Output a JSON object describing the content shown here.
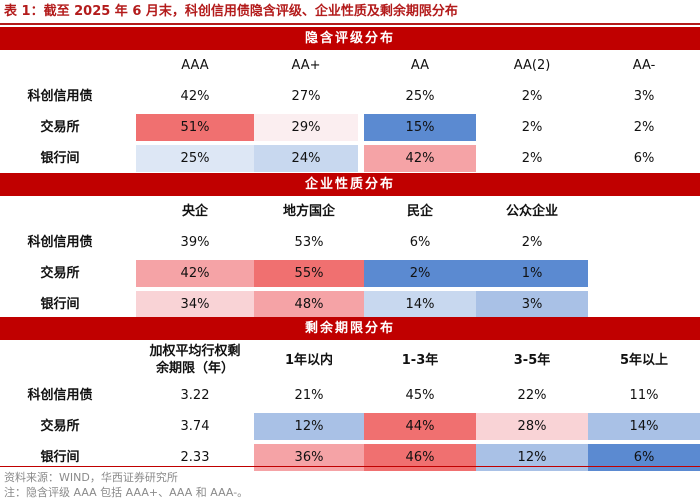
{
  "title": "表 1：截至 2025 年 6 月末，科创信用债隐含评级、企业性质及剩余期限分布",
  "section1": {
    "heading": "隐含评级分布",
    "columns": [
      "AAA",
      "AA+",
      "AA",
      "AA(2)",
      "AA-"
    ],
    "rows": [
      {
        "label": "科创信用债",
        "values": [
          "42%",
          "27%",
          "25%",
          "2%",
          "3%"
        ]
      },
      {
        "label": "交易所",
        "values": [
          "51%",
          "29%",
          "15%",
          "2%",
          "2%"
        ]
      },
      {
        "label": "银行间",
        "values": [
          "25%",
          "24%",
          "42%",
          "2%",
          "6%"
        ]
      }
    ]
  },
  "section2": {
    "heading": "企业性质分布",
    "columns": [
      "央企",
      "地方国企",
      "民企",
      "公众企业"
    ],
    "rows": [
      {
        "label": "科创信用债",
        "values": [
          "39%",
          "53%",
          "6%",
          "2%"
        ]
      },
      {
        "label": "交易所",
        "values": [
          "42%",
          "55%",
          "2%",
          "1%"
        ]
      },
      {
        "label": "银行间",
        "values": [
          "34%",
          "48%",
          "14%",
          "3%"
        ]
      }
    ]
  },
  "section3": {
    "heading": "剩余期限分布",
    "columns": [
      "加权平均行权剩余期限（年）",
      "1年以内",
      "1-3年",
      "3-5年",
      "5年以上"
    ],
    "header_line1": "加权平均行权剩",
    "header_line2": "余期限（年）",
    "rows": [
      {
        "label": "科创信用债",
        "values": [
          "3.22",
          "21%",
          "45%",
          "22%",
          "11%"
        ]
      },
      {
        "label": "交易所",
        "values": [
          "3.74",
          "12%",
          "44%",
          "28%",
          "14%"
        ]
      },
      {
        "label": "银行间",
        "values": [
          "2.33",
          "36%",
          "46%",
          "12%",
          "6%"
        ]
      }
    ]
  },
  "colors": {
    "accent": "#c00000",
    "heat_red_strong": "#f07070",
    "heat_red_mid": "#f5a3a6",
    "heat_red_light": "#f9d3d6",
    "heat_red_pale": "#fbeef0",
    "heat_blue_strong": "#5b8ad1",
    "heat_blue_mid": "#a9c1e6",
    "heat_blue_light": "#c8d8ef",
    "heat_blue_pale": "#dde7f5"
  },
  "footnotes": {
    "source": "资料来源：WIND，华西证券研究所",
    "note": "注：隐含评级 AAA 包括 AAA+、AAA 和 AAA-。"
  }
}
